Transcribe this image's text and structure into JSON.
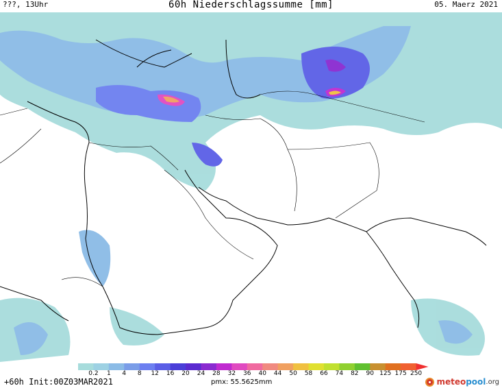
{
  "header": {
    "left_label": "???, 13Uhr",
    "title": "60h Niederschlagssumme [mm]",
    "date": "05. Maerz 2021"
  },
  "legend": {
    "labels": [
      "0.2",
      "1",
      "4",
      "8",
      "12",
      "16",
      "20",
      "24",
      "28",
      "32",
      "36",
      "40",
      "44",
      "50",
      "58",
      "66",
      "74",
      "82",
      "90",
      "125",
      "175",
      "250"
    ],
    "colors": [
      "#a7dcdc",
      "#9dd1e3",
      "#8bbbe6",
      "#7a9de8",
      "#6c7ff0",
      "#5a5ee6",
      "#4a3ed8",
      "#5a2ad0",
      "#8a2ad0",
      "#c02ad0",
      "#e04ac0",
      "#f06aa0",
      "#f08a80",
      "#f0a060",
      "#f0c040",
      "#e0e030",
      "#c0e030",
      "#90d030",
      "#60c030",
      "#c89030",
      "#e07020",
      "#f06030"
    ]
  },
  "footer": {
    "run_info": "+60h Init:00Z03MAR2021",
    "pmx": "pmx: 55.5625mm",
    "logo_meteo": "meteo",
    "logo_pool": "pool",
    "logo_org": ".org"
  }
}
